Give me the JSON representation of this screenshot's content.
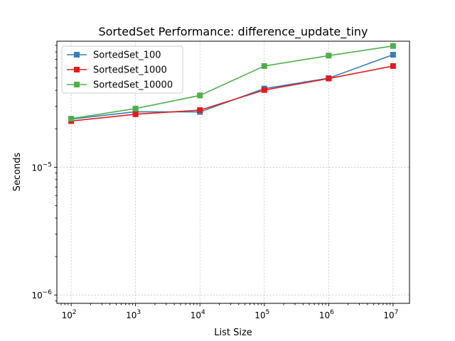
{
  "chart_data": {
    "type": "line",
    "title": "SortedSet Performance: difference_update_tiny",
    "xlabel": "List Size",
    "ylabel": "Seconds",
    "xscale": "log",
    "yscale": "log",
    "xlim": [
      60,
      18000000
    ],
    "ylim": [
      8.6e-07,
      9.7e-05
    ],
    "grid": true,
    "legend_position": "upper left",
    "x": [
      100,
      1000,
      10000,
      100000,
      1000000,
      10000000
    ],
    "x_tick_labels": [
      {
        "base": "10",
        "exp": "2"
      },
      {
        "base": "10",
        "exp": "3"
      },
      {
        "base": "10",
        "exp": "4"
      },
      {
        "base": "10",
        "exp": "5"
      },
      {
        "base": "10",
        "exp": "6"
      },
      {
        "base": "10",
        "exp": "7"
      }
    ],
    "y_ticks": [
      1e-06,
      1e-05
    ],
    "y_tick_labels": [
      {
        "base": "10",
        "exp": "−6"
      },
      {
        "base": "10",
        "exp": "−5"
      }
    ],
    "series": [
      {
        "name": "SortedSet_100",
        "color": "#377eb8",
        "marker": "square",
        "values": [
          2.38e-05,
          2.72e-05,
          2.71e-05,
          4.13e-05,
          4.98e-05,
          7.6e-05
        ]
      },
      {
        "name": "SortedSet_1000",
        "color": "#e41a1c",
        "marker": "square",
        "values": [
          2.3e-05,
          2.6e-05,
          2.8e-05,
          4.02e-05,
          4.95e-05,
          6.2e-05
        ]
      },
      {
        "name": "SortedSet_10000",
        "color": "#4daf4a",
        "marker": "square",
        "values": [
          2.4e-05,
          2.88e-05,
          3.65e-05,
          6.2e-05,
          7.48e-05,
          8.9e-05
        ]
      }
    ]
  }
}
